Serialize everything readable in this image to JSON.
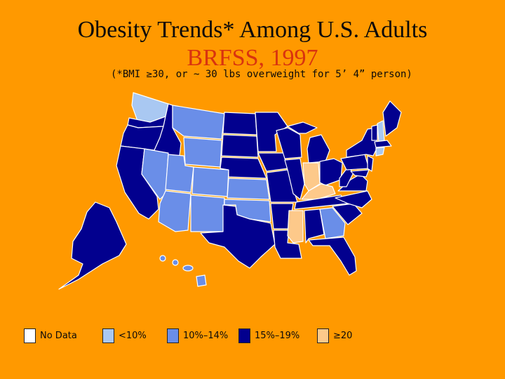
{
  "title": "Obesity Trends* Among U.S. Adults",
  "subtitle": "BRFSS, 1997",
  "footnote": "(*BMI ≥30, or ~ 30 lbs overweight for 5’ 4” person)",
  "colors": {
    "background": "#ff9900",
    "no_data": "#ffffff",
    "lt10": "#a9c8f2",
    "10_14": "#6a8ee8",
    "15_19": "#02008e",
    "ge20": "#fdc98a",
    "border": "#ffffff"
  },
  "legend": [
    {
      "label": "No Data",
      "color": "#ffffff"
    },
    {
      "label": "<10%",
      "color": "#a9c8f2"
    },
    {
      "label": "10%–14%",
      "color": "#6a8ee8"
    },
    {
      "label": "15%–19%",
      "color": "#02008e"
    },
    {
      "label": "≥20",
      "color": "#fdc98a"
    }
  ],
  "states_by_category": {
    "lt10": [
      "Washington (north)",
      "Connecticut",
      "Vermont",
      "New Hampshire"
    ],
    "10_14": [
      "Montana",
      "Wyoming",
      "Nevada",
      "Utah",
      "Colorado",
      "Arizona",
      "New Mexico",
      "Kansas",
      "Oklahoma",
      "Georgia",
      "Hawaii"
    ],
    "15_19": [
      "Washington (south)",
      "Oregon",
      "Idaho",
      "California",
      "North Dakota",
      "South Dakota",
      "Nebraska",
      "Minnesota",
      "Iowa",
      "Missouri",
      "Arkansas",
      "Texas",
      "Louisiana",
      "Wisconsin",
      "Illinois",
      "Michigan",
      "Ohio",
      "Tennessee",
      "Alabama",
      "Florida",
      "Pennsylvania",
      "New York",
      "Maine",
      "Virginia",
      "West Virginia",
      "North Carolina",
      "South Carolina",
      "New Jersey",
      "Maryland",
      "Delaware",
      "Massachusetts",
      "Alaska"
    ],
    "ge20": [
      "Indiana",
      "Kentucky",
      "Mississippi"
    ]
  }
}
